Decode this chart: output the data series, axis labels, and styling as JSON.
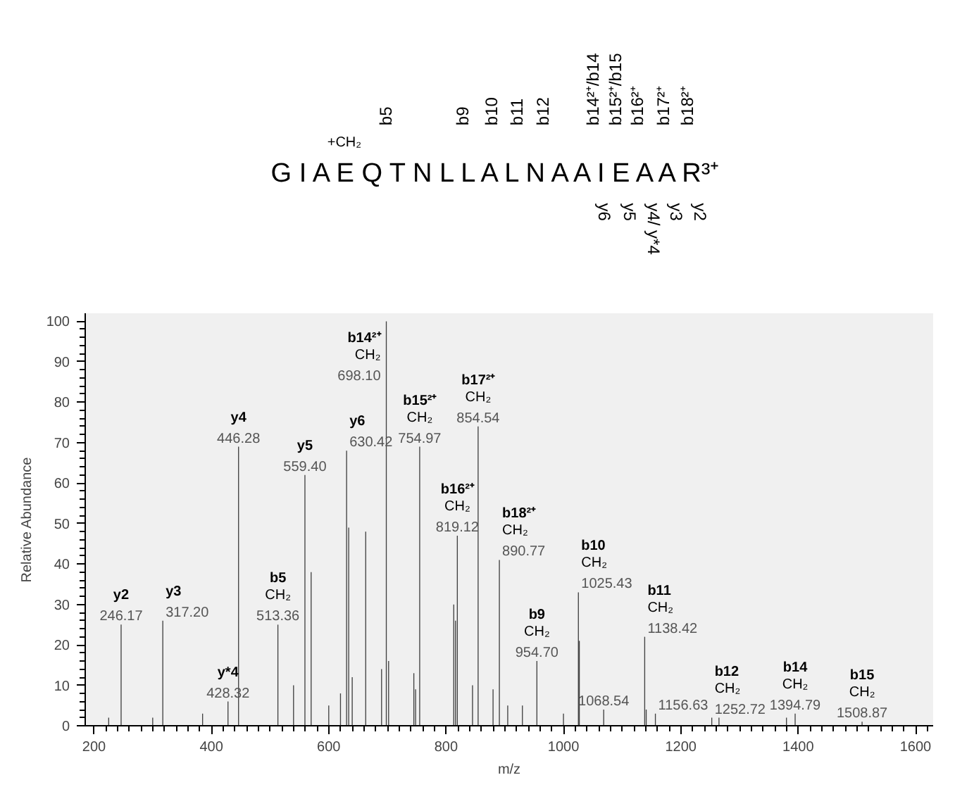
{
  "chart_data": {
    "type": "bar",
    "xlabel": "m/z",
    "ylabel": "Relative Abundance",
    "x": [
      225,
      246.17,
      300,
      317.2,
      385,
      428.32,
      446.28,
      513.36,
      540,
      559.4,
      570,
      600,
      620,
      630.42,
      634,
      640,
      663,
      690,
      698.1,
      702,
      745,
      748,
      754.97,
      813,
      816,
      819.12,
      845,
      854.54,
      880,
      890.77,
      905,
      930,
      954.7,
      1000,
      1025.43,
      1027,
      1068.54,
      1138.42,
      1141,
      1156.63,
      1252.72,
      1265,
      1380,
      1394.79,
      1508.87
    ],
    "series": [
      {
        "color": "#404040",
        "values": [
          2,
          25,
          2,
          26,
          3,
          6,
          69,
          25,
          10,
          62,
          38,
          5,
          8,
          68,
          49,
          12,
          48,
          14,
          100,
          16,
          13,
          9,
          69,
          30,
          26,
          47,
          10,
          74,
          9,
          41,
          5,
          5,
          16,
          3,
          33,
          21,
          4,
          22,
          4,
          3,
          2,
          2,
          2,
          3,
          1
        ]
      }
    ],
    "xlim": [
      185,
      1630
    ],
    "ylim": [
      0,
      102
    ],
    "xticks": [
      200,
      400,
      600,
      800,
      1000,
      1200,
      1400,
      1600
    ],
    "yticks": [
      0,
      10,
      20,
      30,
      40,
      50,
      60,
      70,
      80,
      90,
      100
    ],
    "grid": false,
    "annotations": [
      "G I A E   Q T N L L A L N A A I E A A R³⁺",
      "+CH₂",
      "b5",
      "b9",
      "b10",
      "b11",
      "b12",
      "b14²⁺/b14",
      "b15²⁺/b15",
      "b16²⁺",
      "b17²⁺",
      "b18²⁺",
      "y6",
      "y5",
      "y4/ y*4",
      "y3",
      "y2",
      {
        "text": "y2\n246.17",
        "x": 246.17,
        "y": 25
      },
      {
        "text": "y3\n317.20",
        "x": 317.2,
        "y": 26
      },
      {
        "text": "y*4\n428.32",
        "x": 428.32,
        "y": 6
      },
      {
        "text": "y4\n446.28",
        "x": 446.28,
        "y": 69
      },
      {
        "text": "b5\nCH₂\n513.36",
        "x": 513.36,
        "y": 25
      },
      {
        "text": "y5\n559.40",
        "x": 559.4,
        "y": 62
      },
      {
        "text": "y6\n630.42",
        "x": 630.42,
        "y": 68
      },
      {
        "text": "b14²⁺\nCH₂\n698.10",
        "x": 698.1,
        "y": 100
      },
      {
        "text": "b15²⁺\nCH₂\n754.97",
        "x": 754.97,
        "y": 69
      },
      {
        "text": "b16²⁺\nCH₂\n819.12",
        "x": 819.12,
        "y": 47
      },
      {
        "text": "b17²⁺\nCH₂\n854.54",
        "x": 854.54,
        "y": 74
      },
      {
        "text": "b18²⁺\nCH₂\n890.77",
        "x": 890.77,
        "y": 41
      },
      {
        "text": "b9\nCH₂\n954.70",
        "x": 954.7,
        "y": 16
      },
      {
        "text": "b10\nCH₂\n1025.43",
        "x": 1025.43,
        "y": 33
      },
      {
        "text": "1068.54",
        "x": 1068.54,
        "y": 4
      },
      {
        "text": "b11\nCH₂\n1138.42",
        "x": 1138.42,
        "y": 22
      },
      {
        "text": "1156.63",
        "x": 1156.63,
        "y": 3
      },
      {
        "text": "b12\nCH₂\n1252.72",
        "x": 1252.72,
        "y": 2
      },
      {
        "text": "b14\nCH₂\n1394.79",
        "x": 1394.79,
        "y": 3
      },
      {
        "text": "b15\nCH₂\n1508.87",
        "x": 1508.87,
        "y": 1
      }
    ]
  }
}
